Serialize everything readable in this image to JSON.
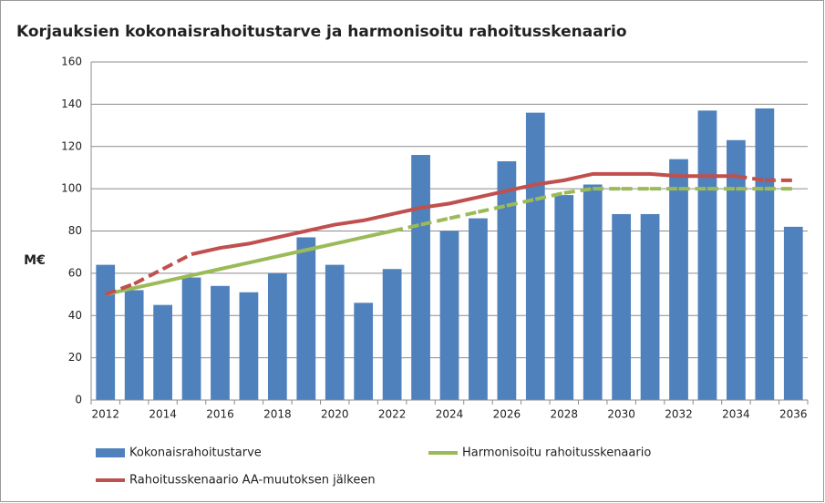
{
  "chart_data": {
    "type": "bar-line",
    "title": "Korjauksien kokonaisrahoitustarve ja harmonisoitu rahoitusskenaario",
    "y_label": "M€",
    "categories": [
      "2012",
      null,
      "2014",
      null,
      "2016",
      null,
      "2018",
      null,
      "2020",
      null,
      "2022",
      null,
      "2024",
      null,
      "2026",
      null,
      "2028",
      null,
      "2030",
      null,
      "2032",
      null,
      "2034",
      null,
      "2036"
    ],
    "ylim": [
      0,
      160
    ],
    "yticks": [
      0,
      20,
      40,
      60,
      80,
      100,
      120,
      140,
      160
    ],
    "grid": true,
    "legend": "bottom",
    "series": [
      {
        "name": "Kokonaisrahoitustarve",
        "type": "bar",
        "color": "#4f81bd",
        "values": [
          64,
          52,
          45,
          58,
          54,
          51,
          60,
          77,
          64,
          46,
          62,
          116,
          80,
          86,
          113,
          136,
          97,
          102,
          88,
          88,
          114,
          137,
          123,
          138,
          82
        ]
      },
      {
        "name": "Harmonisoitu rahoitusskenaario",
        "type": "line",
        "color": "#9bbb59",
        "dashed_segments": [
          [
            10,
            24
          ]
        ],
        "values": [
          50,
          53,
          56,
          59,
          62,
          65,
          68,
          71,
          74,
          77,
          80,
          83,
          86,
          89,
          92,
          95,
          98,
          100,
          100,
          100,
          100,
          100,
          100,
          100,
          100
        ]
      },
      {
        "name": "Rahoitusskenaario AA-muutoksen jälkeen",
        "type": "line",
        "color": "#c0504d",
        "dashed_segments": [
          [
            0,
            3
          ],
          [
            22,
            24
          ]
        ],
        "values": [
          50,
          55,
          62,
          69,
          72,
          74,
          77,
          80,
          83,
          85,
          88,
          91,
          93,
          96,
          99,
          102,
          104,
          107,
          107,
          107,
          106,
          106,
          106,
          104,
          104
        ]
      }
    ]
  }
}
